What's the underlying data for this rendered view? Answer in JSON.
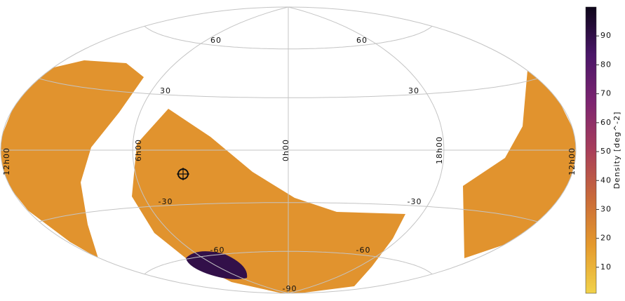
{
  "chart_data": {
    "type": "skymap",
    "graticule_labels": [
      "60",
      "60",
      "30",
      "30",
      "-30",
      "-30",
      "-60",
      "-60",
      "-90",
      "0h00",
      "6h00",
      "18h00",
      "12h00",
      "12h00"
    ],
    "values": [
      20,
      20,
      20,
      90
    ],
    "colorbar_label": "Density [deg^-2]",
    "clim": [
      1,
      100
    ],
    "cticks": [
      10,
      20,
      30,
      40,
      50,
      60,
      70,
      80,
      90
    ],
    "colormap": [
      "#f1d24a",
      "#e59a2c",
      "#c96a3a",
      "#a83e5a",
      "#7d2470",
      "#4a1668",
      "#0d0619"
    ]
  }
}
